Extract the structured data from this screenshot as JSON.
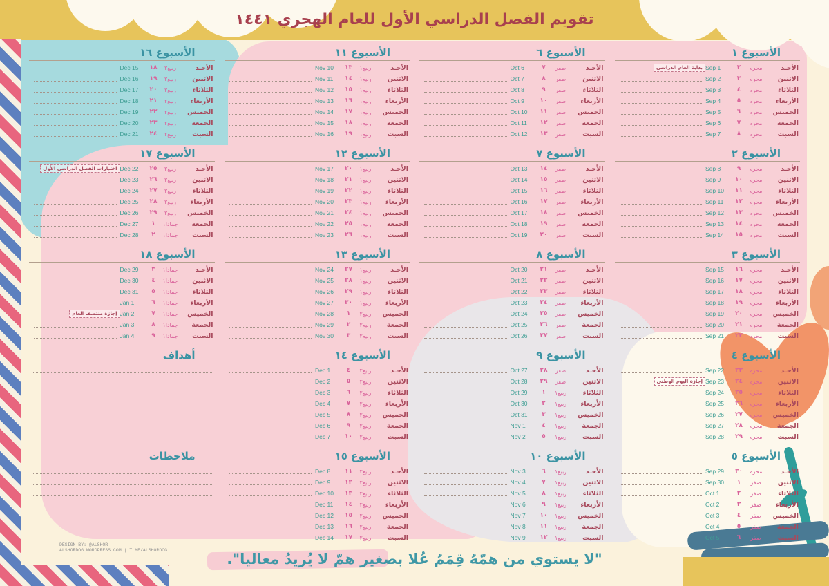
{
  "page": {
    "title": "تقويم الفصل الدراسي الأول للعام الهجري ١٤٤١",
    "quote": "\"لا يستوي من همّهُ قِمَمُ عُلا بصغير همّ لا يُريدُ معاليا\".",
    "credit_line1": "DESIGN BY: @ALSHOR",
    "credit_line2": "ALSHORDOG.WORDPRESS.COM | T.ME/ALSHORDOG"
  },
  "colors": {
    "band_yellow": "#e7c45b",
    "title_maroon": "#a8404e",
    "week_title_teal": "#3a93a3",
    "day_maroon": "#a8495c",
    "hijri_pink": "#d9639b",
    "gregorian_teal": "#3f9e94",
    "blob_teal": "#a6dade",
    "blob_pink": "#f8d0d6",
    "blob_gray": "#e9e6e9",
    "flower_orange": "#f29468",
    "airmail_red": "#e8657e",
    "airmail_blue": "#5d80bf"
  },
  "day_names": [
    "الأحـد",
    "الاثنين",
    "الثلاثاء",
    "الأربعاء",
    "الخميس",
    "الجمعة",
    "السبت"
  ],
  "sections": {
    "goals": "أهداف",
    "notes": "ملاحظات"
  },
  "weeks": [
    {
      "label": "الأسبوع ١",
      "note": {
        "text": "بداية العام الدراسي",
        "row": 0
      },
      "days": [
        {
          "h": "٢",
          "m": "محرم",
          "g": "Sep 1"
        },
        {
          "h": "٣",
          "m": "محرم",
          "g": "Sep 2"
        },
        {
          "h": "٤",
          "m": "محرم",
          "g": "Sep 3"
        },
        {
          "h": "٥",
          "m": "محرم",
          "g": "Sep 4"
        },
        {
          "h": "٦",
          "m": "محرم",
          "g": "Sep 5"
        },
        {
          "h": "٧",
          "m": "محرم",
          "g": "Sep 6"
        },
        {
          "h": "٨",
          "m": "محرم",
          "g": "Sep 7"
        }
      ]
    },
    {
      "label": "الأسبوع ٢",
      "days": [
        {
          "h": "٩",
          "m": "محرم",
          "g": "Sep 8"
        },
        {
          "h": "١٠",
          "m": "محرم",
          "g": "Sep 9"
        },
        {
          "h": "١١",
          "m": "محرم",
          "g": "Sep 10"
        },
        {
          "h": "١٢",
          "m": "محرم",
          "g": "Sep 11"
        },
        {
          "h": "١٣",
          "m": "محرم",
          "g": "Sep 12"
        },
        {
          "h": "١٤",
          "m": "محرم",
          "g": "Sep 13"
        },
        {
          "h": "١٥",
          "m": "محرم",
          "g": "Sep 14"
        }
      ]
    },
    {
      "label": "الأسبوع ٣",
      "days": [
        {
          "h": "١٦",
          "m": "محرم",
          "g": "Sep 15"
        },
        {
          "h": "١٧",
          "m": "محرم",
          "g": "Sep 16"
        },
        {
          "h": "١٨",
          "m": "محرم",
          "g": "Sep 17"
        },
        {
          "h": "١٩",
          "m": "محرم",
          "g": "Sep 18"
        },
        {
          "h": "٢٠",
          "m": "محرم",
          "g": "Sep 19"
        },
        {
          "h": "٢١",
          "m": "محرم",
          "g": "Sep 20"
        },
        {
          "h": "٢٢",
          "m": "محرم",
          "g": "Sep 21"
        }
      ]
    },
    {
      "label": "الأسبوع ٤",
      "note": {
        "text": "إجازة اليوم الوطني",
        "row": 1
      },
      "days": [
        {
          "h": "٢٣",
          "m": "محرم",
          "g": "Sep 22"
        },
        {
          "h": "٢٤",
          "m": "محرم",
          "g": "Sep 23"
        },
        {
          "h": "٢٥",
          "m": "محرم",
          "g": "Sep 24"
        },
        {
          "h": "٢٦",
          "m": "محرم",
          "g": "Sep 25"
        },
        {
          "h": "٢٧",
          "m": "محرم",
          "g": "Sep 26"
        },
        {
          "h": "٢٨",
          "m": "محرم",
          "g": "Sep 27"
        },
        {
          "h": "٢٩",
          "m": "محرم",
          "g": "Sep 28"
        }
      ]
    },
    {
      "label": "الأسبوع ٥",
      "days": [
        {
          "h": "٣٠",
          "m": "محرم",
          "g": "Sep 29"
        },
        {
          "h": "١",
          "m": "صفر",
          "g": "Sep 30"
        },
        {
          "h": "٢",
          "m": "صفر",
          "g": "Oct 1"
        },
        {
          "h": "٣",
          "m": "صفر",
          "g": "Oct 2"
        },
        {
          "h": "٤",
          "m": "صفر",
          "g": "Oct 3"
        },
        {
          "h": "٥",
          "m": "صفر",
          "g": "Oct 4"
        },
        {
          "h": "٦",
          "m": "صفر",
          "g": "Oct 5"
        }
      ]
    },
    {
      "label": "الأسبوع ٦",
      "days": [
        {
          "h": "٧",
          "m": "صفر",
          "g": "Oct 6"
        },
        {
          "h": "٨",
          "m": "صفر",
          "g": "Oct 7"
        },
        {
          "h": "٩",
          "m": "صفر",
          "g": "Oct 8"
        },
        {
          "h": "١٠",
          "m": "صفر",
          "g": "Oct 9"
        },
        {
          "h": "١١",
          "m": "صفر",
          "g": "Oct 10"
        },
        {
          "h": "١٢",
          "m": "صفر",
          "g": "Oct 11"
        },
        {
          "h": "١٣",
          "m": "صفر",
          "g": "Oct 12"
        }
      ]
    },
    {
      "label": "الأسبوع ٧",
      "days": [
        {
          "h": "١٤",
          "m": "صفر",
          "g": "Oct 13"
        },
        {
          "h": "١٥",
          "m": "صفر",
          "g": "Oct 14"
        },
        {
          "h": "١٦",
          "m": "صفر",
          "g": "Oct 15"
        },
        {
          "h": "١٧",
          "m": "صفر",
          "g": "Oct 16"
        },
        {
          "h": "١٨",
          "m": "صفر",
          "g": "Oct 17"
        },
        {
          "h": "١٩",
          "m": "صفر",
          "g": "Oct 18"
        },
        {
          "h": "٢٠",
          "m": "صفر",
          "g": "Oct 19"
        }
      ]
    },
    {
      "label": "الأسبوع ٨",
      "days": [
        {
          "h": "٢١",
          "m": "صفر",
          "g": "Oct 20"
        },
        {
          "h": "٢٢",
          "m": "صفر",
          "g": "Oct 21"
        },
        {
          "h": "٢٣",
          "m": "صفر",
          "g": "Oct 22"
        },
        {
          "h": "٢٤",
          "m": "صفر",
          "g": "Oct 23"
        },
        {
          "h": "٢٥",
          "m": "صفر",
          "g": "Oct 24"
        },
        {
          "h": "٢٦",
          "m": "صفر",
          "g": "Oct 25"
        },
        {
          "h": "٢٧",
          "m": "صفر",
          "g": "Oct 26"
        }
      ]
    },
    {
      "label": "الأسبوع ٩",
      "days": [
        {
          "h": "٢٨",
          "m": "صفر",
          "g": "Oct 27"
        },
        {
          "h": "٢٩",
          "m": "صفر",
          "g": "Oct 28"
        },
        {
          "h": "١",
          "m": "ربيع١",
          "g": "Oct 29"
        },
        {
          "h": "٢",
          "m": "ربيع١",
          "g": "Oct 30"
        },
        {
          "h": "٣",
          "m": "ربيع١",
          "g": "Oct 31"
        },
        {
          "h": "٤",
          "m": "ربيع١",
          "g": "Nov 1"
        },
        {
          "h": "٥",
          "m": "ربيع١",
          "g": "Nov 2"
        }
      ]
    },
    {
      "label": "الأسبوع ١٠",
      "days": [
        {
          "h": "٦",
          "m": "ربيع١",
          "g": "Nov 3"
        },
        {
          "h": "٧",
          "m": "ربيع١",
          "g": "Nov 4"
        },
        {
          "h": "٨",
          "m": "ربيع١",
          "g": "Nov 5"
        },
        {
          "h": "٩",
          "m": "ربيع١",
          "g": "Nov 6"
        },
        {
          "h": "١٠",
          "m": "ربيع١",
          "g": "Nov 7"
        },
        {
          "h": "١١",
          "m": "ربيع١",
          "g": "Nov 8"
        },
        {
          "h": "١٢",
          "m": "ربيع١",
          "g": "Nov 9"
        }
      ]
    },
    {
      "label": "الأسبوع ١١",
      "days": [
        {
          "h": "١٣",
          "m": "ربيع١",
          "g": "Nov 10"
        },
        {
          "h": "١٤",
          "m": "ربيع١",
          "g": "Nov 11"
        },
        {
          "h": "١٥",
          "m": "ربيع١",
          "g": "Nov 12"
        },
        {
          "h": "١٦",
          "m": "ربيع١",
          "g": "Nov 13"
        },
        {
          "h": "١٧",
          "m": "ربيع١",
          "g": "Nov 14"
        },
        {
          "h": "١٨",
          "m": "ربيع١",
          "g": "Nov 15"
        },
        {
          "h": "١٩",
          "m": "ربيع١",
          "g": "Nov 16"
        }
      ]
    },
    {
      "label": "الأسبوع ١٢",
      "days": [
        {
          "h": "٢٠",
          "m": "ربيع١",
          "g": "Nov 17"
        },
        {
          "h": "٢١",
          "m": "ربيع١",
          "g": "Nov 18"
        },
        {
          "h": "٢٢",
          "m": "ربيع١",
          "g": "Nov 19"
        },
        {
          "h": "٢٣",
          "m": "ربيع١",
          "g": "Nov 20"
        },
        {
          "h": "٢٤",
          "m": "ربيع١",
          "g": "Nov 21"
        },
        {
          "h": "٢٥",
          "m": "ربيع١",
          "g": "Nov 22"
        },
        {
          "h": "٢٦",
          "m": "ربيع١",
          "g": "Nov 23"
        }
      ]
    },
    {
      "label": "الأسبوع ١٣",
      "days": [
        {
          "h": "٢٧",
          "m": "ربيع١",
          "g": "Nov 24"
        },
        {
          "h": "٢٨",
          "m": "ربيع١",
          "g": "Nov 25"
        },
        {
          "h": "٢٩",
          "m": "ربيع١",
          "g": "Nov 26"
        },
        {
          "h": "٣٠",
          "m": "ربيع١",
          "g": "Nov 27"
        },
        {
          "h": "١",
          "m": "ربيع٢",
          "g": "Nov 28"
        },
        {
          "h": "٢",
          "m": "ربيع٢",
          "g": "Nov 29"
        },
        {
          "h": "٣",
          "m": "ربيع٢",
          "g": "Nov 30"
        }
      ]
    },
    {
      "label": "الأسبوع ١٤",
      "days": [
        {
          "h": "٤",
          "m": "ربيع٢",
          "g": "Dec 1"
        },
        {
          "h": "٥",
          "m": "ربيع٢",
          "g": "Dec 2"
        },
        {
          "h": "٦",
          "m": "ربيع٢",
          "g": "Dec 3"
        },
        {
          "h": "٧",
          "m": "ربيع٢",
          "g": "Dec 4"
        },
        {
          "h": "٨",
          "m": "ربيع٢",
          "g": "Dec 5"
        },
        {
          "h": "٩",
          "m": "ربيع٢",
          "g": "Dec 6"
        },
        {
          "h": "١٠",
          "m": "ربيع٢",
          "g": "Dec 7"
        }
      ]
    },
    {
      "label": "الأسبوع ١٥",
      "days": [
        {
          "h": "١١",
          "m": "ربيع٢",
          "g": "Dec 8"
        },
        {
          "h": "١٢",
          "m": "ربيع٢",
          "g": "Dec 9"
        },
        {
          "h": "١٣",
          "m": "ربيع٢",
          "g": "Dec 10"
        },
        {
          "h": "١٤",
          "m": "ربيع٢",
          "g": "Dec 11"
        },
        {
          "h": "١٥",
          "m": "ربيع٢",
          "g": "Dec 12"
        },
        {
          "h": "١٦",
          "m": "ربيع٢",
          "g": "Dec 13"
        },
        {
          "h": "١٧",
          "m": "ربيع٢",
          "g": "Dec 14"
        }
      ]
    },
    {
      "label": "الأسبوع ١٦",
      "days": [
        {
          "h": "١٨",
          "m": "ربيع٢",
          "g": "Dec 15"
        },
        {
          "h": "١٩",
          "m": "ربيع٢",
          "g": "Dec 16"
        },
        {
          "h": "٢٠",
          "m": "ربيع٢",
          "g": "Dec 17"
        },
        {
          "h": "٢١",
          "m": "ربيع٢",
          "g": "Dec 18"
        },
        {
          "h": "٢٢",
          "m": "ربيع٢",
          "g": "Dec 19"
        },
        {
          "h": "٢٣",
          "m": "ربيع٢",
          "g": "Dec 20"
        },
        {
          "h": "٢٤",
          "m": "ربيع٢",
          "g": "Dec 21"
        }
      ]
    },
    {
      "label": "الأسبوع ١٧",
      "note": {
        "text": "اختبارات الفصل الدراسي الأول",
        "row": 0
      },
      "days": [
        {
          "h": "٢٥",
          "m": "ربيع٢",
          "g": "Dec 22"
        },
        {
          "h": "٢٦",
          "m": "ربيع٢",
          "g": "Dec 23"
        },
        {
          "h": "٢٧",
          "m": "ربيع٢",
          "g": "Dec 24"
        },
        {
          "h": "٢٨",
          "m": "ربيع٢",
          "g": "Dec 25"
        },
        {
          "h": "٢٩",
          "m": "ربيع٢",
          "g": "Dec 26"
        },
        {
          "h": "١",
          "m": "جمادا١",
          "g": "Dec 27"
        },
        {
          "h": "٢",
          "m": "جمادا١",
          "g": "Dec 28"
        }
      ]
    },
    {
      "label": "الأسبوع ١٨",
      "note": {
        "text": "إجازة منتصف العام",
        "row": 4
      },
      "days": [
        {
          "h": "٣",
          "m": "جمادا١",
          "g": "Dec 29"
        },
        {
          "h": "٤",
          "m": "جمادا١",
          "g": "Dec 30"
        },
        {
          "h": "٥",
          "m": "جمادا١",
          "g": "Dec 31"
        },
        {
          "h": "٦",
          "m": "جمادا١",
          "g": "Jan 1"
        },
        {
          "h": "٧",
          "m": "جمادا١",
          "g": "Jan 2"
        },
        {
          "h": "٨",
          "m": "جمادا١",
          "g": "Jan 3"
        },
        {
          "h": "٩",
          "m": "جمادا١",
          "g": "Jan 4"
        }
      ]
    }
  ]
}
